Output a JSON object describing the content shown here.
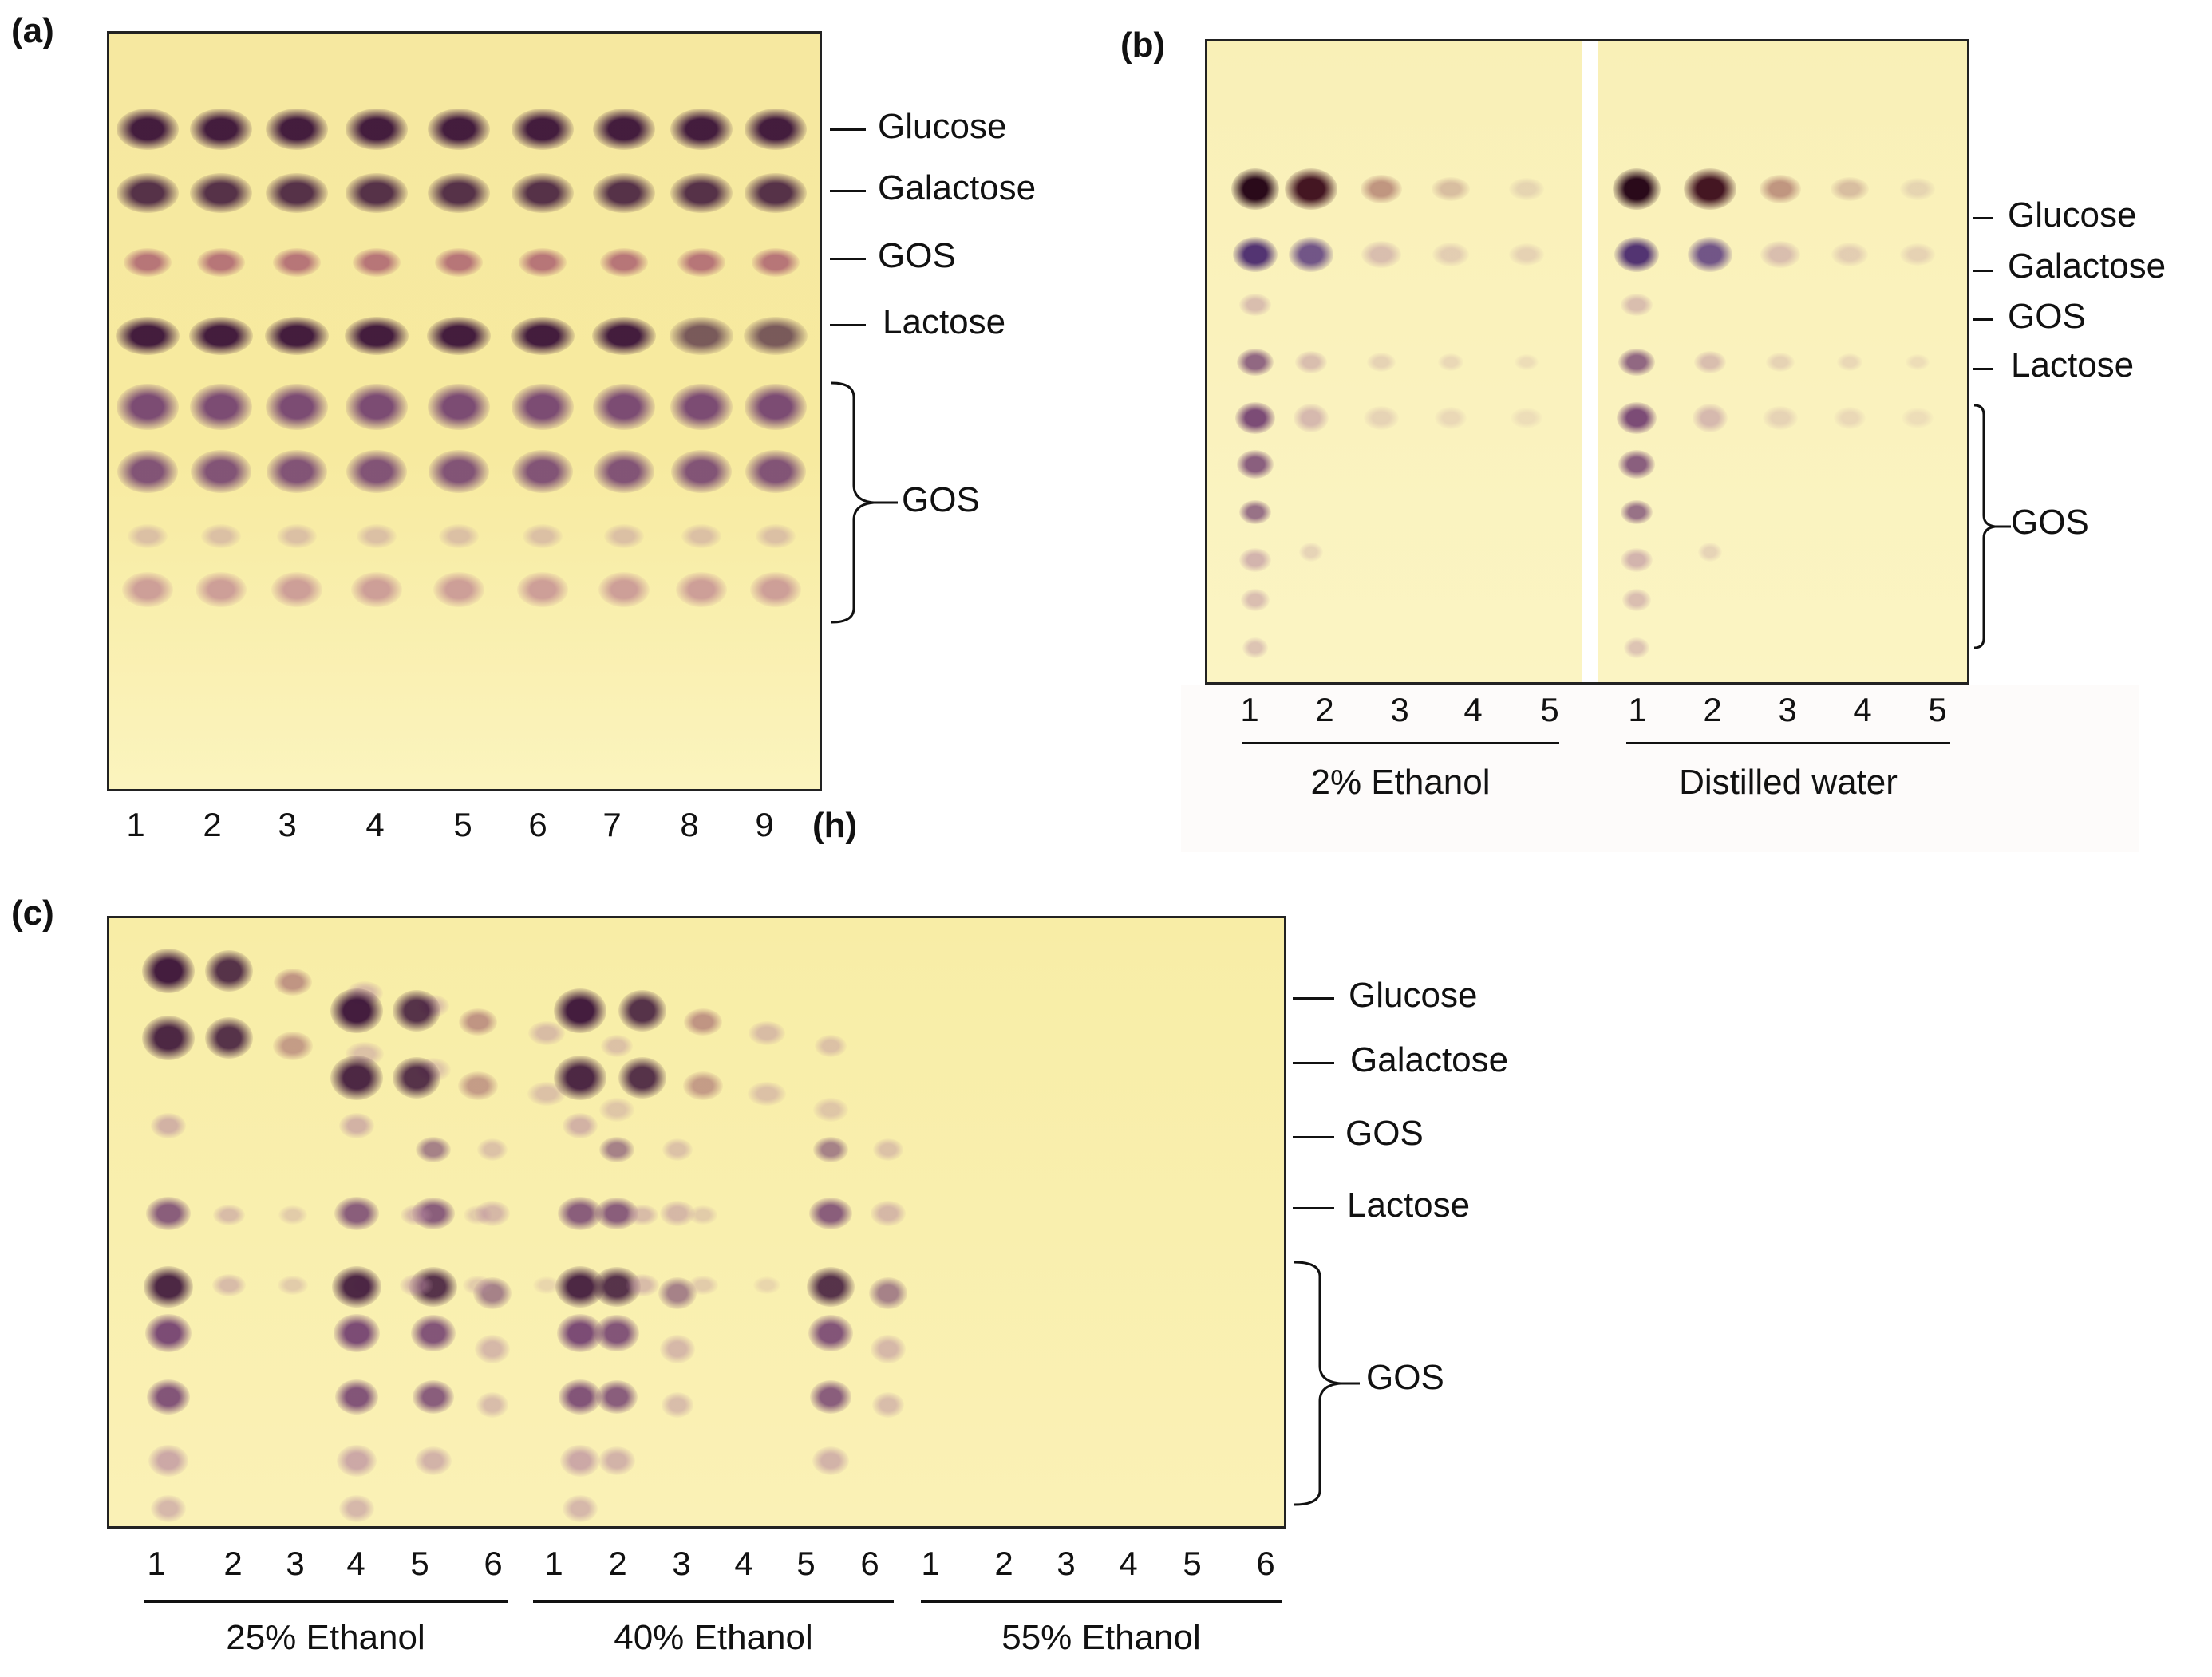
{
  "panels": {
    "a": {
      "label": "(a)",
      "bands": [
        "Glucose",
        "Galactose",
        "GOS",
        "Lactose"
      ],
      "gos_bracket_label": "GOS",
      "lanes": [
        "1",
        "2",
        "3",
        "4",
        "5",
        "6",
        "7",
        "8",
        "9"
      ],
      "unit": "(h)"
    },
    "b": {
      "label": "(b)",
      "bands": [
        "Glucose",
        "Galactose",
        "GOS",
        "Lactose"
      ],
      "gos_bracket_label": "GOS",
      "groups": [
        {
          "label": "2% Ethanol",
          "lanes": [
            "1",
            "2",
            "3",
            "4",
            "5"
          ]
        },
        {
          "label": "Distilled water",
          "lanes": [
            "1",
            "2",
            "3",
            "4",
            "5"
          ]
        }
      ]
    },
    "c": {
      "label": "(c)",
      "bands": [
        "Glucose",
        "Galactose",
        "GOS",
        "Lactose"
      ],
      "gos_bracket_label": "GOS",
      "groups": [
        {
          "label": "25% Ethanol",
          "lanes": [
            "1",
            "2",
            "3",
            "4",
            "5",
            "6"
          ]
        },
        {
          "label": "40% Ethanol",
          "lanes": [
            "1",
            "2",
            "3",
            "4",
            "5",
            "6"
          ]
        },
        {
          "label": "55% Ethanol",
          "lanes": [
            "1",
            "2",
            "3",
            "4",
            "5",
            "6"
          ]
        }
      ]
    }
  },
  "colors": {
    "plate": "#f8eda6",
    "spot_dark": "#3a1238",
    "spot_mid": "#6e3a6e",
    "spot_light": "#b88aa0"
  }
}
